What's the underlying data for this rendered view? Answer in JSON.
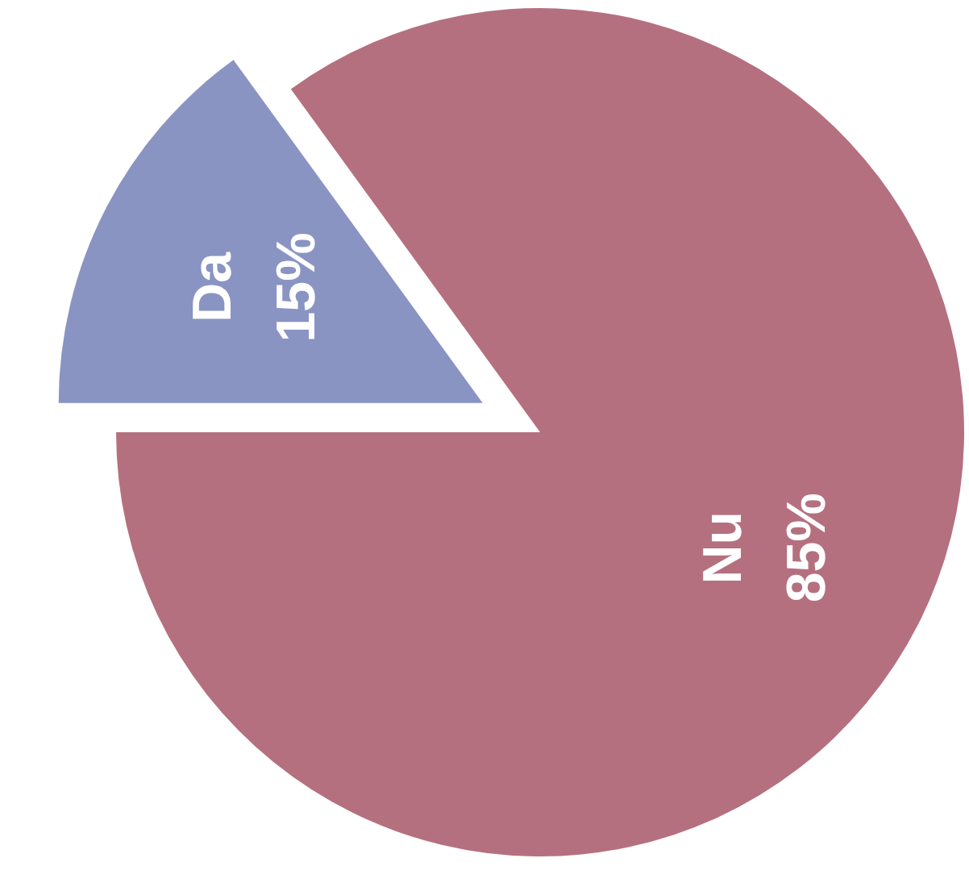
{
  "chart_data": {
    "type": "pie",
    "categories": [
      "Da",
      "Nu"
    ],
    "values": [
      15,
      85
    ],
    "colors": [
      "#8a94c2",
      "#b5707f"
    ],
    "value_labels": [
      "15%",
      "85%"
    ]
  }
}
